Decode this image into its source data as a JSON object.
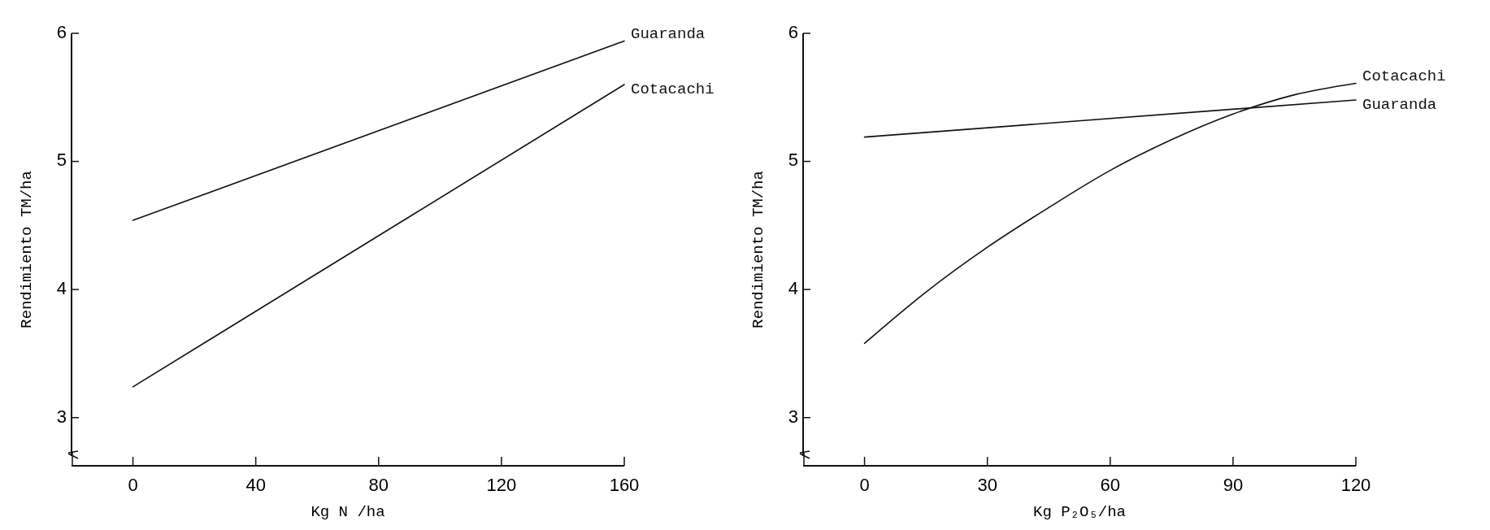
{
  "chart_data": [
    {
      "type": "line",
      "xlabel": "Kg  N /ha",
      "ylabel": "Rendimiento TM/ha",
      "x": [
        0,
        160
      ],
      "xlim": [
        -20,
        160
      ],
      "xticks": [
        0,
        40,
        80,
        120,
        160
      ],
      "ylim": [
        2.7,
        6
      ],
      "yticks": [
        3,
        4,
        5,
        6
      ],
      "marker": "none",
      "line_style": "solid",
      "series": [
        {
          "name": "Guaranda",
          "color": "#111111",
          "values": [
            4.54,
            5.94
          ]
        },
        {
          "name": "Cotacachi",
          "color": "#111111",
          "values": [
            3.24,
            5.6
          ]
        }
      ]
    },
    {
      "type": "line",
      "xlabel": "Kg  P₂O₅/ha",
      "ylabel": "Rendimiento TM/ha",
      "x": [
        0,
        15,
        30,
        45,
        60,
        75,
        90,
        105,
        120
      ],
      "xlim": [
        -15,
        120
      ],
      "xticks": [
        0,
        30,
        60,
        90,
        120
      ],
      "ylim": [
        2.7,
        6
      ],
      "yticks": [
        3,
        4,
        5,
        6
      ],
      "marker": "none",
      "line_style": "solid",
      "series": [
        {
          "name": "Cotacachi",
          "color": "#111111",
          "values": [
            3.58,
            3.98,
            4.33,
            4.64,
            4.93,
            5.17,
            5.37,
            5.52,
            5.61
          ]
        },
        {
          "name": "Guaranda",
          "color": "#111111",
          "x": [
            0,
            120
          ],
          "values": [
            5.19,
            5.48
          ]
        }
      ]
    }
  ]
}
